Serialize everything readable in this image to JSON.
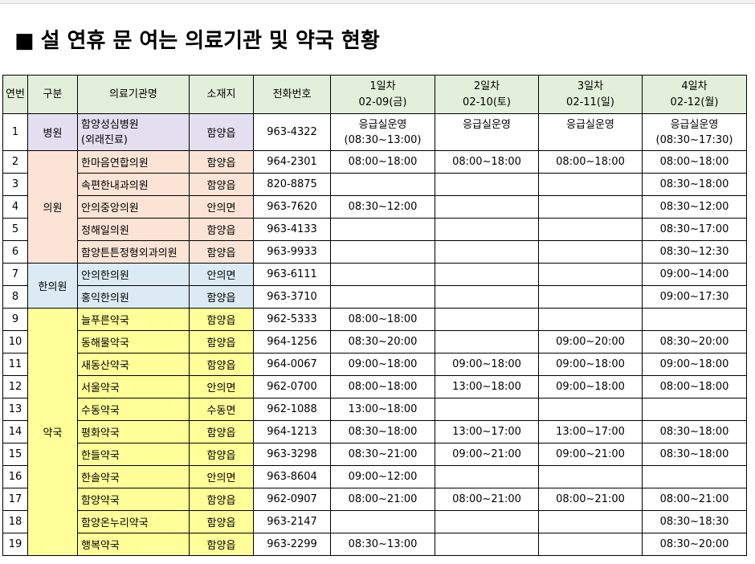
{
  "title_marker": "■",
  "title": "설 연휴 문 여는 의료기관 및 약국 현황",
  "columns": {
    "no": "연번",
    "type": "구분",
    "name": "의료기관명",
    "loc": "소재지",
    "phone": "전화번호",
    "days": [
      {
        "label": "1일차",
        "date": "02-09(금)"
      },
      {
        "label": "2일차",
        "date": "02-10(토)"
      },
      {
        "label": "3일차",
        "date": "02-11(일)"
      },
      {
        "label": "4일차",
        "date": "02-12(월)"
      }
    ]
  },
  "groups": {
    "hospital": "병원",
    "clinic": "의원",
    "korean": "한의원",
    "pharmacy": "약국"
  },
  "rows": [
    {
      "no": "1",
      "name": "함양성심병원",
      "name2": "(외래진료)",
      "loc": "함양읍",
      "phone": "963-4322",
      "d1": "응급실운영",
      "d1b": "(08:30~13:00)",
      "d2": "응급실운영",
      "d3": "응급실운영",
      "d4": "응급실운영",
      "d4b": "(08:30~17:30)"
    },
    {
      "no": "2",
      "name": "한마음연합의원",
      "loc": "함양읍",
      "phone": "964-2301",
      "d1": "08:00~18:00",
      "d2": "08:00~18:00",
      "d3": "08:00~18:00",
      "d4": "08:00~18:00"
    },
    {
      "no": "3",
      "name": "속편한내과의원",
      "loc": "함양읍",
      "phone": "820-8875",
      "d1": "",
      "d2": "",
      "d3": "",
      "d4": "08:30~18:00"
    },
    {
      "no": "4",
      "name": "안의중앙의원",
      "loc": "안의면",
      "phone": "963-7620",
      "d1": "08:30~12:00",
      "d2": "",
      "d3": "",
      "d4": "08:30~12:00"
    },
    {
      "no": "5",
      "name": "정해일의원",
      "loc": "함양읍",
      "phone": "963-4133",
      "d1": "",
      "d2": "",
      "d3": "",
      "d4": "08:30~17:00"
    },
    {
      "no": "6",
      "name": "함양튼튼정형외과의원",
      "loc": "함양읍",
      "phone": "963-9933",
      "d1": "",
      "d2": "",
      "d3": "",
      "d4": "08:30~12:30"
    },
    {
      "no": "7",
      "name": "안의한의원",
      "loc": "안의면",
      "phone": "963-6111",
      "d1": "",
      "d2": "",
      "d3": "",
      "d4": "09:00~14:00"
    },
    {
      "no": "8",
      "name": "홍익한의원",
      "loc": "함양읍",
      "phone": "963-3710",
      "d1": "",
      "d2": "",
      "d3": "",
      "d4": "09:00~17:30"
    },
    {
      "no": "9",
      "name": "늘푸른약국",
      "loc": "함양읍",
      "phone": "962-5333",
      "d1": "08:00~18:00",
      "d2": "",
      "d3": "",
      "d4": ""
    },
    {
      "no": "10",
      "name": "동해물약국",
      "loc": "함양읍",
      "phone": "964-1256",
      "d1": "08:30~20:00",
      "d2": "",
      "d3": "09:00~20:00",
      "d4": "08:30~20:00"
    },
    {
      "no": "11",
      "name": "새동산약국",
      "loc": "함양읍",
      "phone": "964-0067",
      "d1": "09:00~18:00",
      "d2": "09:00~18:00",
      "d3": "09:00~18:00",
      "d4": "09:00~18:00"
    },
    {
      "no": "12",
      "name": "서울약국",
      "loc": "안의면",
      "phone": "962-0700",
      "d1": "08:00~18:00",
      "d2": "13:00~18:00",
      "d3": "09:00~18:00",
      "d4": "08:00~18:00"
    },
    {
      "no": "13",
      "name": "수동약국",
      "loc": "수동면",
      "phone": "962-1088",
      "d1": "13:00~18:00",
      "d2": "",
      "d3": "",
      "d4": ""
    },
    {
      "no": "14",
      "name": "평화약국",
      "loc": "함양읍",
      "phone": "964-1213",
      "d1": "08:30~18:00",
      "d2": "13:00~17:00",
      "d3": "13:00~17:00",
      "d4": "08:30~18:00"
    },
    {
      "no": "15",
      "name": "한들약국",
      "loc": "함양읍",
      "phone": "963-3298",
      "d1": "08:30~21:00",
      "d2": "09:00~21:00",
      "d3": "09:00~21:00",
      "d4": "08:30~18:00"
    },
    {
      "no": "16",
      "name": "한솔약국",
      "loc": "안의면",
      "phone": "963-8604",
      "d1": "09:00~12:00",
      "d2": "",
      "d3": "",
      "d4": ""
    },
    {
      "no": "17",
      "name": "함양약국",
      "loc": "함양읍",
      "phone": "962-0907",
      "d1": "08:00~21:00",
      "d2": "08:00~21:00",
      "d3": "08:00~21:00",
      "d4": "08:00~21:00"
    },
    {
      "no": "18",
      "name": "함양온누리약국",
      "loc": "함양읍",
      "phone": "963-2147",
      "d1": "",
      "d2": "",
      "d3": "",
      "d4": "08:30~18:30"
    },
    {
      "no": "19",
      "name": "행복약국",
      "loc": "함양읍",
      "phone": "963-2299",
      "d1": "08:30~13:00",
      "d2": "",
      "d3": "",
      "d4": "08:30~20:00"
    }
  ],
  "colors": {
    "header": "#e2efda",
    "hospital": "#e4dff0",
    "clinic": "#fbe4d5",
    "korean": "#dcebf3",
    "pharmacy": "#ffff99",
    "number_col": "#d9d9d9"
  }
}
